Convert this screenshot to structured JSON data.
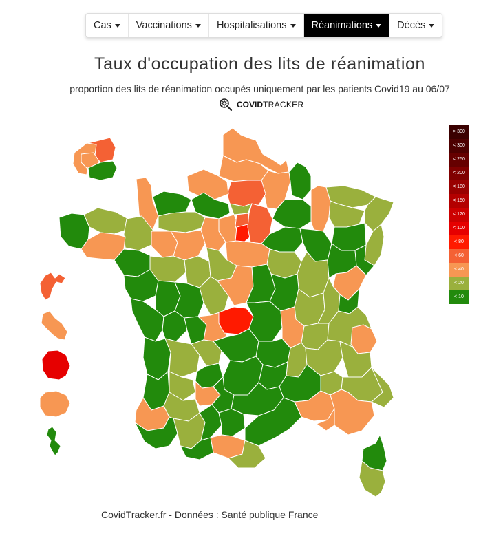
{
  "nav": {
    "items": [
      {
        "label": "Cas",
        "active": false
      },
      {
        "label": "Vaccinations",
        "active": false
      },
      {
        "label": "Hospitalisations",
        "active": false
      },
      {
        "label": "Réanimations",
        "active": true
      },
      {
        "label": "Décès",
        "active": false
      }
    ]
  },
  "title": "Taux d'occupation des lits de réanimation",
  "subtitle": "proportion des lits de réanimation occupés uniquement par les patients Covid19 au 06/07",
  "brand": {
    "bold": "COVID",
    "normal": "TRACKER",
    "icon": "virus-search-icon"
  },
  "legend": [
    {
      "label": "> 300",
      "color": "#3a0000"
    },
    {
      "label": "< 300",
      "color": "#4d0000"
    },
    {
      "label": "< 250",
      "color": "#660000"
    },
    {
      "label": "< 200",
      "color": "#800000"
    },
    {
      "label": "< 180",
      "color": "#990000"
    },
    {
      "label": "< 150",
      "color": "#b30000"
    },
    {
      "label": "< 120",
      "color": "#cc0000"
    },
    {
      "label": "< 100",
      "color": "#e60000"
    },
    {
      "label": "< 80",
      "color": "#ff1a00"
    },
    {
      "label": "< 60",
      "color": "#f46134"
    },
    {
      "label": "< 40",
      "color": "#f79753"
    },
    {
      "label": "< 20",
      "color": "#9ab03d"
    },
    {
      "label": "< 10",
      "color": "#228a0c"
    }
  ],
  "palette": {
    "lt10": "#228a0c",
    "lt20": "#9ab03d",
    "lt40": "#f79753",
    "lt60": "#f46134",
    "lt80": "#ff1a00",
    "lt100": "#e60000"
  },
  "footer": "CovidTracker.fr - Données : Santé publique France"
}
